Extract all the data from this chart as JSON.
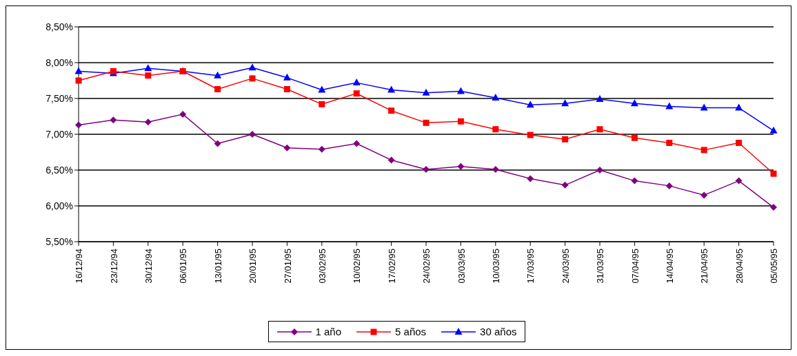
{
  "chart_data": {
    "type": "line",
    "categories": [
      "16/12/94",
      "23/12/94",
      "30/12/94",
      "06/01/95",
      "13/01/95",
      "20/01/95",
      "27/01/95",
      "03/02/95",
      "10/02/95",
      "17/02/95",
      "24/02/95",
      "03/03/95",
      "10/03/95",
      "17/03/95",
      "24/03/95",
      "31/03/95",
      "07/04/95",
      "14/04/95",
      "21/04/95",
      "28/04/95",
      "05/05/95"
    ],
    "series": [
      {
        "name": "1 año",
        "color": "#800080",
        "marker": "diamond",
        "values": [
          7.13,
          7.2,
          7.17,
          7.28,
          6.87,
          7.0,
          6.81,
          6.79,
          6.87,
          6.64,
          6.51,
          6.55,
          6.51,
          6.38,
          6.29,
          6.5,
          6.35,
          6.28,
          6.15,
          6.35,
          5.98
        ]
      },
      {
        "name": "5 años",
        "color": "#ff0000",
        "marker": "square",
        "values": [
          7.75,
          7.88,
          7.82,
          7.88,
          7.63,
          7.78,
          7.63,
          7.42,
          7.57,
          7.33,
          7.16,
          7.18,
          7.07,
          6.99,
          6.93,
          7.07,
          6.95,
          6.88,
          6.78,
          6.88,
          6.45
        ]
      },
      {
        "name": "30 años",
        "color": "#0000ff",
        "marker": "triangle",
        "values": [
          7.88,
          7.85,
          7.92,
          7.88,
          7.82,
          7.93,
          7.79,
          7.62,
          7.72,
          7.62,
          7.58,
          7.6,
          7.51,
          7.41,
          7.43,
          7.49,
          7.43,
          7.39,
          7.37,
          7.37,
          7.05
        ]
      }
    ],
    "ylim": [
      5.5,
      8.5
    ],
    "yticks": [
      {
        "value": 5.5,
        "label": "5,50%"
      },
      {
        "value": 6,
        "label": "6,00%"
      },
      {
        "value": 6.5,
        "label": "6,50%"
      },
      {
        "value": 7,
        "label": "7,00%"
      },
      {
        "value": 7.5,
        "label": "7,50%"
      },
      {
        "value": 8,
        "label": "8,00%"
      },
      {
        "value": 8.5,
        "label": "8,50%"
      }
    ],
    "grid": "y",
    "legend": "bottom",
    "line_style": "solid"
  }
}
